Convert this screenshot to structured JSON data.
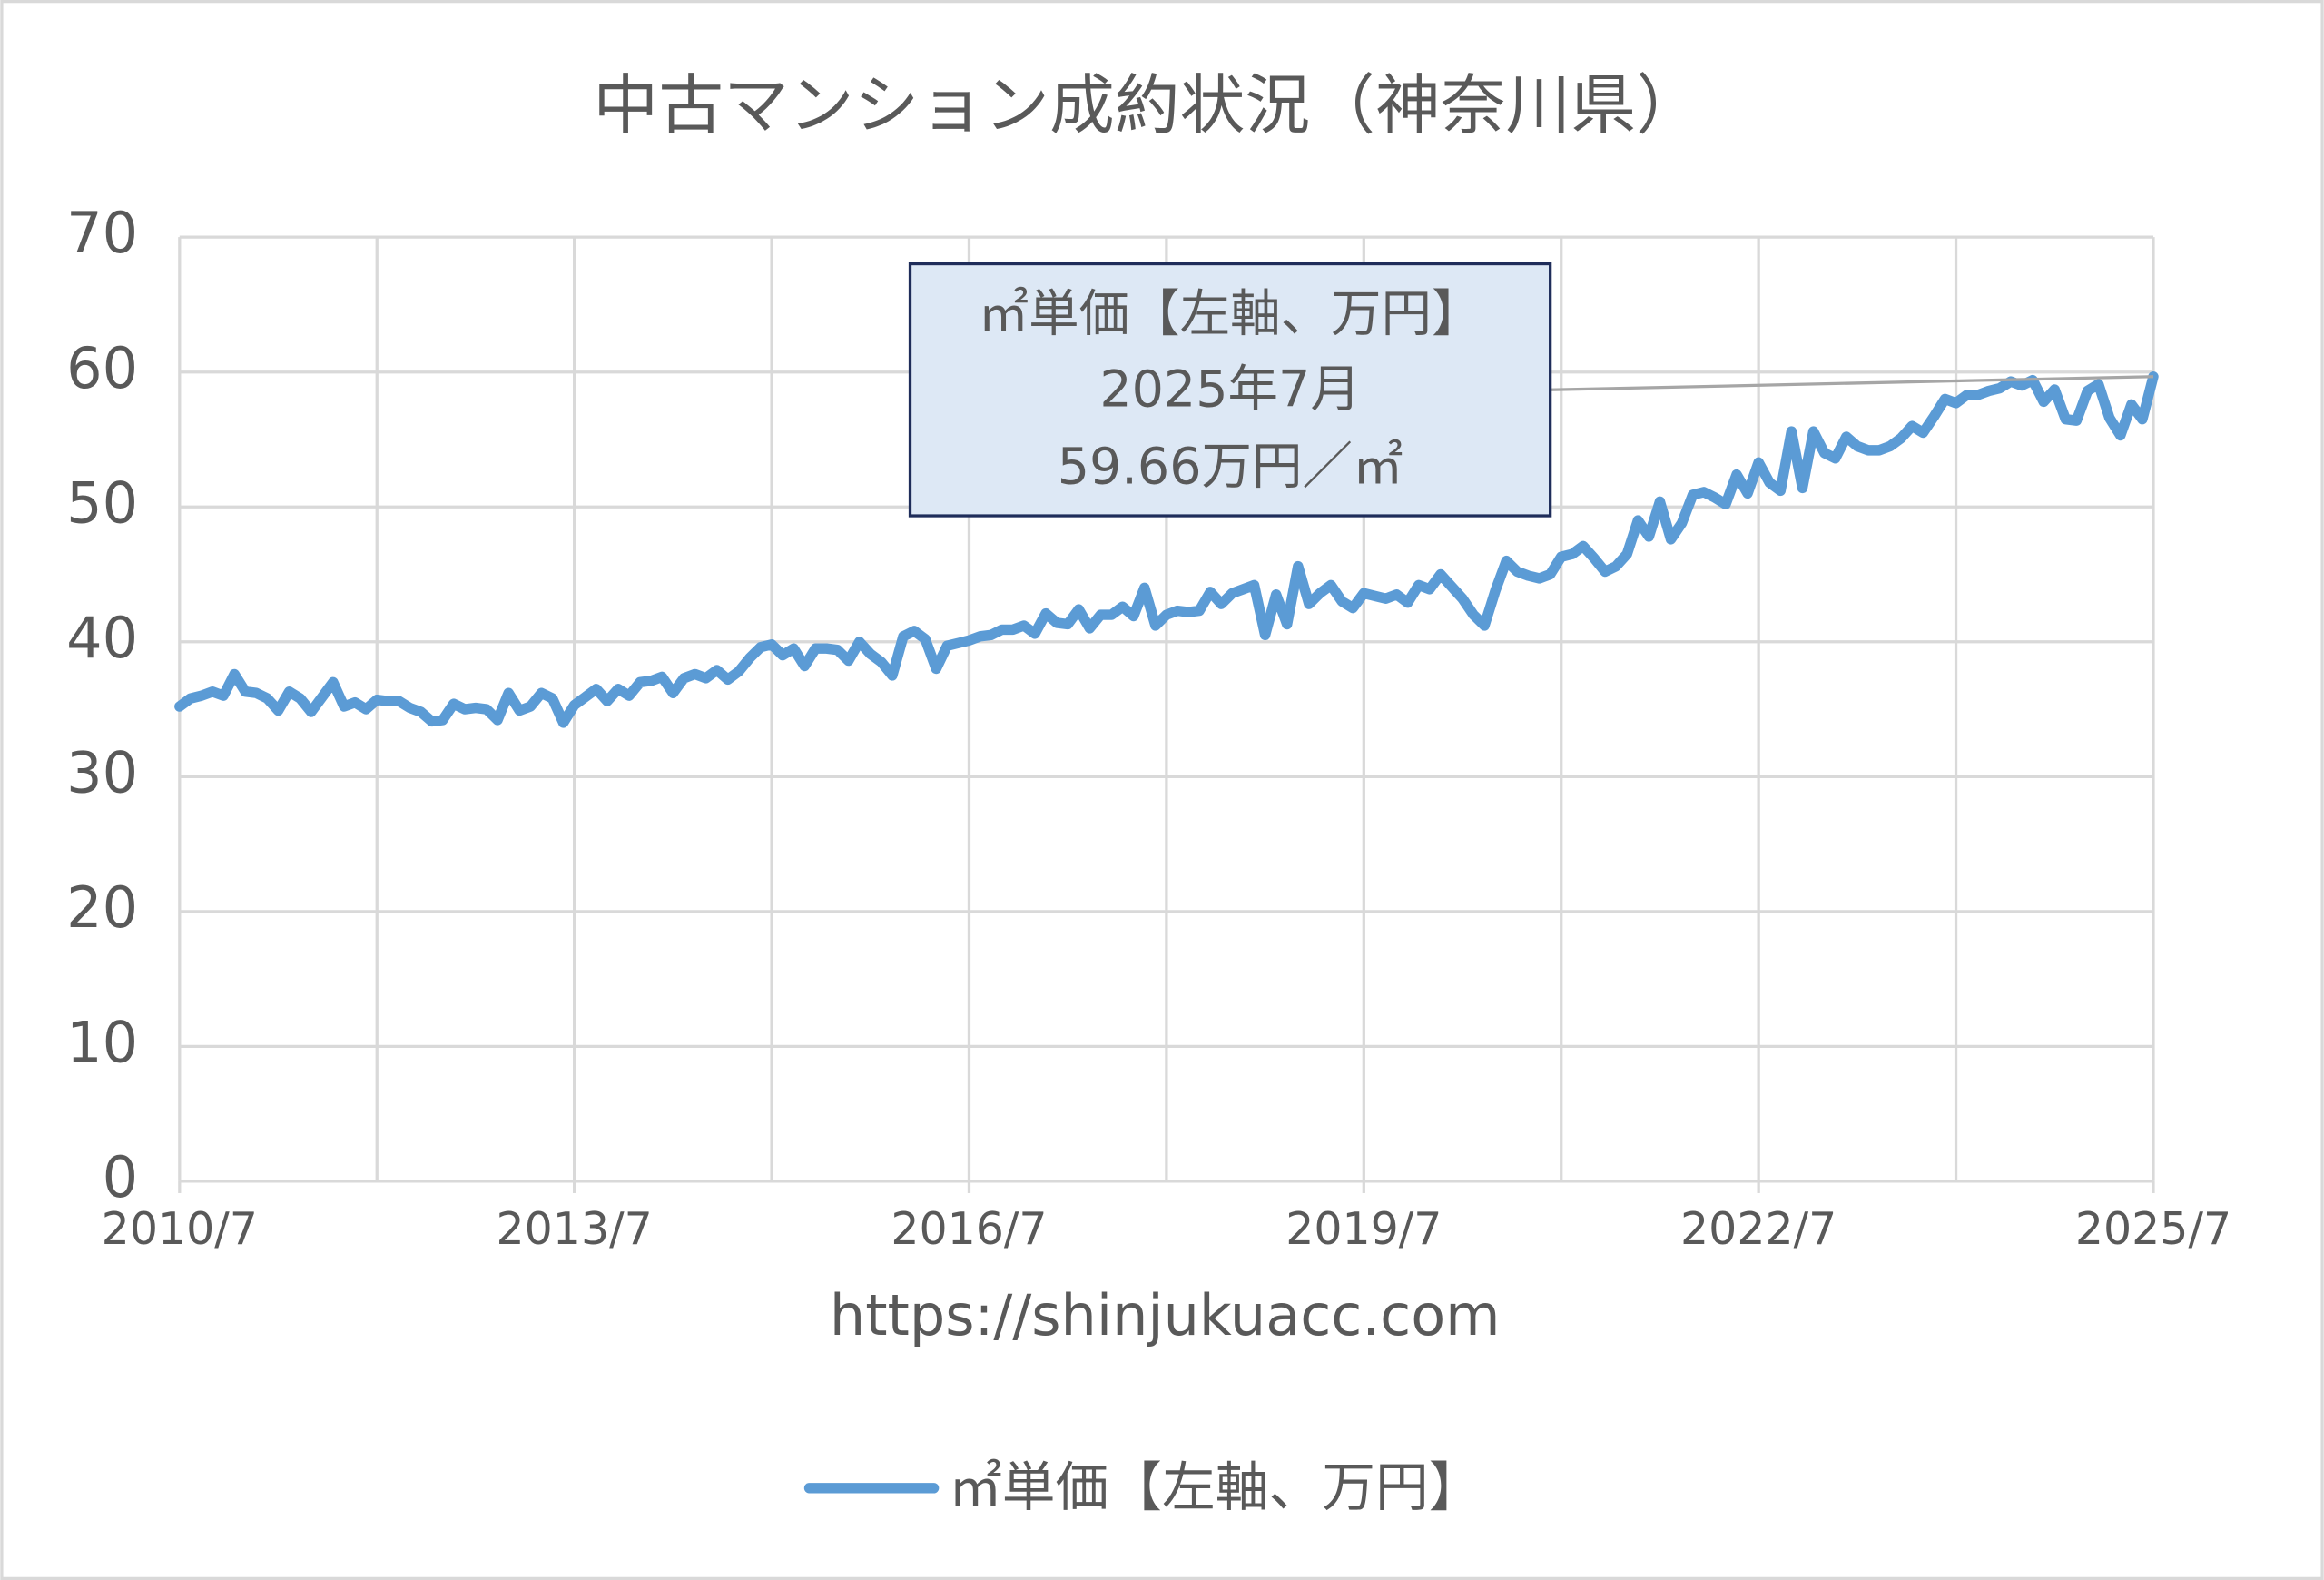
{
  "chart_data": {
    "type": "line",
    "title": "中古マンション成約状況（神奈川県）",
    "x_label": "https://shinjukuacc.com",
    "categories": [
      "2010/7",
      null,
      null,
      null,
      null,
      null,
      null,
      null,
      null,
      null,
      null,
      null,
      null,
      null,
      null,
      null,
      null,
      null,
      null,
      null,
      null,
      null,
      null,
      null,
      null,
      null,
      null,
      null,
      null,
      null,
      null,
      null,
      null,
      null,
      null,
      null,
      "2013/7",
      null,
      null,
      null,
      null,
      null,
      null,
      null,
      null,
      null,
      null,
      null,
      null,
      null,
      null,
      null,
      null,
      null,
      null,
      null,
      null,
      null,
      null,
      null,
      null,
      null,
      null,
      null,
      null,
      null,
      null,
      null,
      null,
      null,
      null,
      null,
      "2016/7",
      null,
      null,
      null,
      null,
      null,
      null,
      null,
      null,
      null,
      null,
      null,
      null,
      null,
      null,
      null,
      null,
      null,
      null,
      null,
      null,
      null,
      null,
      null,
      null,
      null,
      null,
      null,
      null,
      null,
      null,
      null,
      null,
      null,
      null,
      null,
      "2019/7",
      null,
      null,
      null,
      null,
      null,
      null,
      null,
      null,
      null,
      null,
      null,
      null,
      null,
      null,
      null,
      null,
      null,
      null,
      null,
      null,
      null,
      null,
      null,
      null,
      null,
      null,
      null,
      null,
      null,
      null,
      null,
      null,
      null,
      null,
      null,
      "2022/7",
      null,
      null,
      null,
      null,
      null,
      null,
      null,
      null,
      null,
      null,
      null,
      null,
      null,
      null,
      null,
      null,
      null,
      null,
      null,
      null,
      null,
      null,
      null,
      null,
      null,
      null,
      null,
      null,
      null,
      null,
      null,
      null,
      null,
      null,
      null,
      "2025/7"
    ],
    "series": [
      {
        "name": "㎡単価【左軸、万円】",
        "color": "#5b9bd5",
        "values": [
          35.2,
          35.8,
          36.0,
          36.3,
          36.0,
          37.6,
          36.3,
          36.2,
          35.8,
          34.9,
          36.3,
          35.8,
          34.8,
          35.9,
          37.0,
          35.2,
          35.5,
          35.0,
          35.7,
          35.6,
          35.6,
          35.1,
          34.8,
          34.1,
          34.2,
          35.4,
          35.0,
          35.1,
          35.0,
          34.2,
          36.2,
          34.9,
          35.2,
          36.2,
          35.8,
          34.0,
          35.3,
          35.9,
          36.5,
          35.6,
          36.5,
          36.0,
          37.0,
          37.1,
          37.4,
          36.2,
          37.3,
          37.6,
          37.3,
          37.9,
          37.2,
          37.8,
          38.8,
          39.6,
          39.8,
          39.0,
          39.5,
          38.2,
          39.5,
          39.5,
          39.4,
          38.6,
          40.0,
          39.1,
          38.5,
          37.5,
          40.4,
          40.8,
          40.2,
          38.0,
          39.7,
          39.9,
          40.1,
          40.4,
          40.5,
          40.9,
          40.9,
          41.2,
          40.6,
          42.1,
          41.4,
          41.3,
          42.4,
          41.0,
          42.0,
          42.0,
          42.6,
          41.9,
          44.0,
          41.2,
          42.0,
          42.3,
          42.2,
          42.3,
          43.7,
          42.8,
          43.6,
          43.9,
          44.2,
          40.5,
          43.5,
          41.3,
          45.6,
          42.8,
          43.6,
          44.2,
          43.0,
          42.5,
          43.6,
          43.4,
          43.2,
          43.5,
          42.9,
          44.2,
          43.9,
          45.0,
          44.1,
          43.2,
          42.0,
          41.2,
          43.8,
          46.0,
          45.2,
          44.9,
          44.7,
          45.0,
          46.3,
          46.5,
          47.1,
          46.2,
          45.2,
          45.6,
          46.5,
          49.0,
          47.8,
          50.4,
          47.6,
          48.8,
          50.9,
          51.1,
          50.7,
          50.2,
          52.4,
          51.0,
          53.3,
          51.8,
          51.2,
          55.6,
          51.4,
          55.6,
          54.0,
          53.6,
          55.2,
          54.5,
          54.2,
          54.2,
          54.5,
          55.1,
          56.0,
          55.5,
          56.7,
          58.0,
          57.7,
          58.3,
          58.3,
          58.6,
          58.8,
          59.3,
          59.0,
          59.4,
          57.8,
          58.7,
          56.5,
          56.4,
          58.6,
          59.1,
          56.6,
          55.3,
          57.6,
          56.5,
          59.66
        ]
      }
    ],
    "ylim": [
      0,
      70
    ],
    "yticks": [
      0,
      10,
      20,
      30,
      40,
      50,
      60,
      70
    ],
    "grid": true,
    "legend": "bottom",
    "annotation": {
      "series_label": "㎡単価【左軸、万円】",
      "date": "2025年7月",
      "text": "59.66万円／㎡"
    }
  }
}
